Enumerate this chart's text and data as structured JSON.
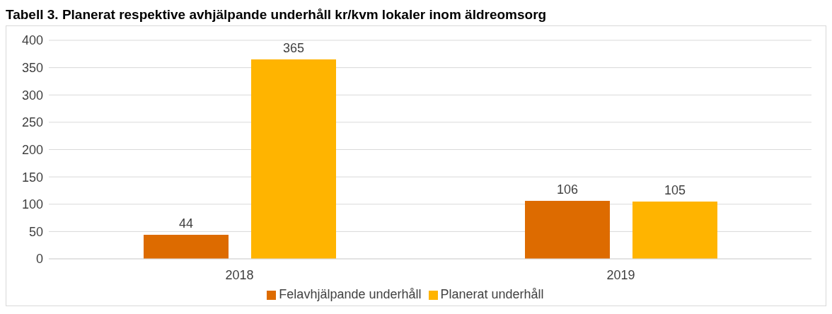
{
  "chart_data": {
    "type": "bar",
    "title": "Tabell 3. Planerat respektive avhjälpande underhåll kr/kvm lokaler inom äldreomsorg",
    "categories": [
      "2018",
      "2019"
    ],
    "series": [
      {
        "name": "Felavhjälpande underhåll",
        "color": "#dd6b00",
        "values": [
          44,
          106
        ]
      },
      {
        "name": "Planerat underhåll",
        "color": "#ffb400",
        "values": [
          365,
          105
        ]
      }
    ],
    "ylim": [
      0,
      400
    ],
    "yticks": [
      0,
      50,
      100,
      150,
      200,
      250,
      300,
      350,
      400
    ],
    "grid": "y",
    "legend": "bottom",
    "data_labels": true
  }
}
